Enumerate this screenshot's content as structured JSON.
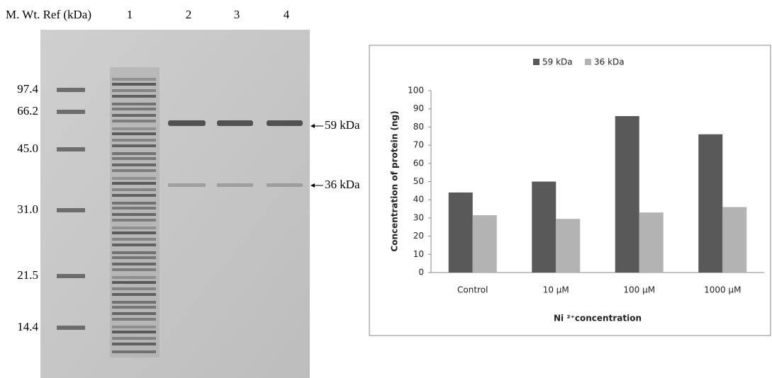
{
  "gel": {
    "header": "M. Wt. Ref (kDa)",
    "lanes": [
      "1",
      "2",
      "3",
      "4"
    ],
    "markers": [
      "97.4",
      "66.2",
      "45.0",
      "31.0",
      "21.5",
      "14.4"
    ],
    "arrows": [
      "59 kDa",
      "36 kDa"
    ]
  },
  "chart_data": {
    "type": "bar",
    "categories": [
      "Control",
      "10 µM",
      "100 µM",
      "1000 µM"
    ],
    "series": [
      {
        "name": "59 kDa",
        "color": "#595959",
        "values": [
          44,
          50,
          86,
          76
        ]
      },
      {
        "name": "36 kDa",
        "color": "#b3b3b3",
        "values": [
          31.5,
          29.5,
          33,
          36
        ]
      }
    ],
    "y_label": "Concentration of protein (ng)",
    "x_label": "Ni ²⁺concentration",
    "ylim": [
      0,
      100
    ],
    "yticks": [
      0,
      10,
      20,
      30,
      40,
      50,
      60,
      70,
      80,
      90,
      100
    ],
    "legend": "top"
  }
}
